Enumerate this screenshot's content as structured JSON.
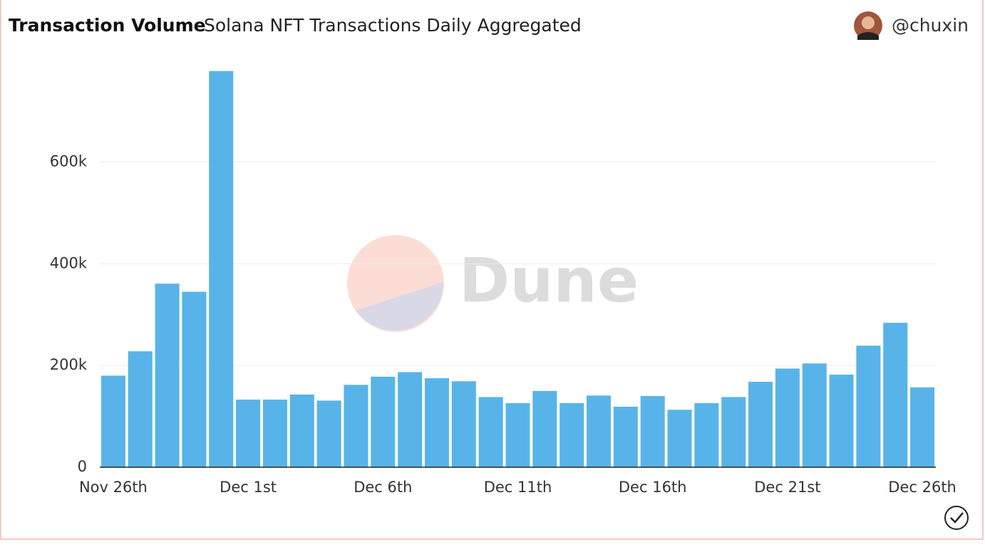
{
  "chart_data": {
    "type": "bar",
    "title": "Transaction Volume",
    "subtitle": "Solana NFT Transactions Daily Aggregated",
    "author": "@chuxin",
    "watermark": "Dune",
    "color": "#58b4e8",
    "categories": [
      "Nov 26th",
      null,
      null,
      null,
      null,
      "Dec 1st",
      null,
      null,
      null,
      null,
      "Dec 6th",
      null,
      null,
      null,
      null,
      "Dec 11th",
      null,
      null,
      null,
      null,
      "Dec 16th",
      null,
      null,
      null,
      null,
      "Dec 21st",
      null,
      null,
      null,
      null,
      "Dec 26th"
    ],
    "values": [
      180000,
      228000,
      361000,
      345000,
      779000,
      133000,
      133000,
      143000,
      131000,
      162000,
      178000,
      187000,
      175000,
      169000,
      138000,
      126000,
      150000,
      126000,
      141000,
      119000,
      140000,
      113000,
      126000,
      138000,
      168000,
      194000,
      204000,
      182000,
      239000,
      284000,
      157000
    ],
    "ylim": [
      0,
      780000
    ],
    "yticks": [
      0,
      {
        "value": 200000,
        "label": "200k"
      },
      {
        "value": 400000,
        "label": "400k"
      },
      {
        "value": 600000,
        "label": "600k"
      }
    ],
    "grid": true
  }
}
